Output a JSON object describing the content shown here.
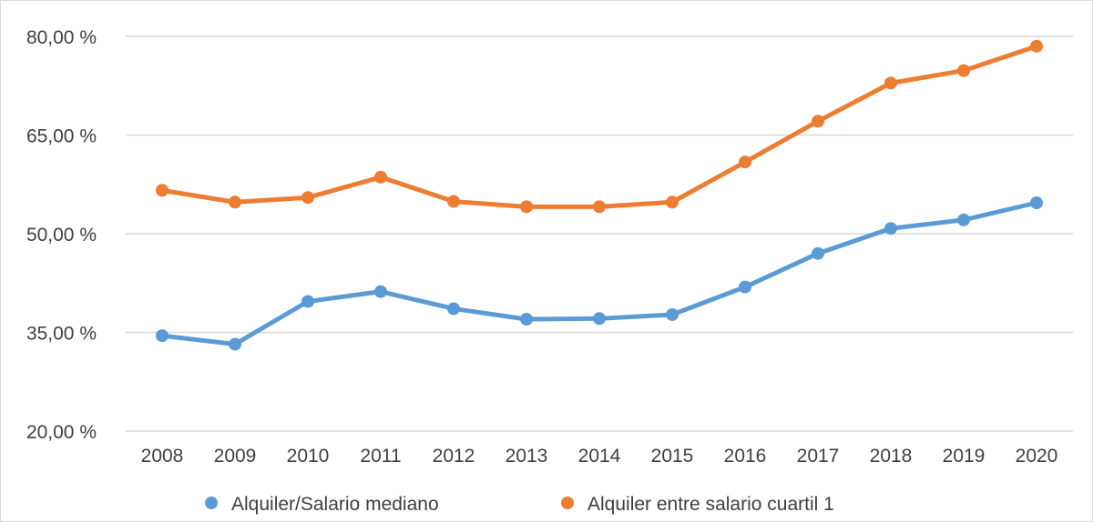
{
  "chart_data": {
    "type": "line",
    "title": "",
    "xlabel": "",
    "ylabel": "",
    "categories": [
      "2008",
      "2009",
      "2010",
      "2011",
      "2012",
      "2013",
      "2014",
      "2015",
      "2016",
      "2017",
      "2018",
      "2019",
      "2020"
    ],
    "y_ticks": [
      "80,00 %",
      "65,00 %",
      "50,00 %",
      "35,00 %",
      "20,00 %"
    ],
    "ylim": [
      20,
      80
    ],
    "grid": true,
    "legend_position": "bottom",
    "series": [
      {
        "name": "Alquiler/Salario mediano",
        "color": "#5b9bd5",
        "values": [
          34.5,
          33.2,
          39.7,
          41.2,
          38.6,
          37.0,
          37.1,
          37.7,
          41.9,
          47.0,
          50.8,
          52.1,
          54.7
        ]
      },
      {
        "name": "Alquiler entre salario cuartil 1",
        "color": "#ed7d31",
        "values": [
          56.6,
          54.8,
          55.5,
          58.6,
          54.9,
          54.1,
          54.1,
          54.8,
          60.9,
          67.1,
          72.9,
          74.8,
          78.5
        ]
      }
    ]
  }
}
